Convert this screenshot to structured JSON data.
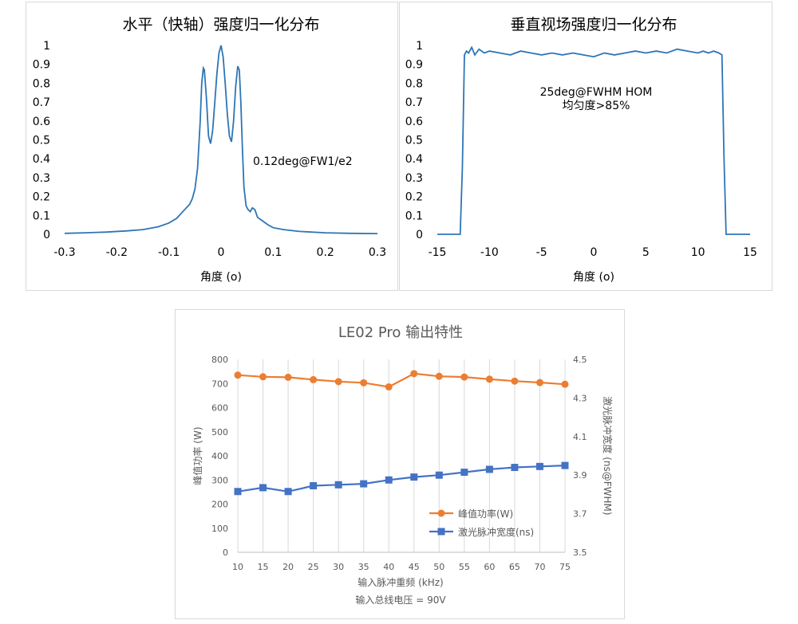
{
  "chart_data": [
    {
      "type": "line",
      "title": "水平（快轴）强度归一化分布",
      "xlabel": "角度 (o)",
      "ylabel": "",
      "xlim": [
        -0.3,
        0.3
      ],
      "ylim": [
        0,
        1
      ],
      "xticks": [
        "-0.3",
        "-0.2",
        "-0.1",
        "0",
        "0.1",
        "0.2",
        "0.3"
      ],
      "yticks": [
        "0",
        "0.1",
        "0.2",
        "0.3",
        "0.4",
        "0.5",
        "0.6",
        "0.7",
        "0.8",
        "0.9",
        "1"
      ],
      "annotation": "0.12deg@FW1/e2",
      "color": "#2e75b6",
      "series": [
        {
          "x": [
            -0.3,
            -0.26,
            -0.22,
            -0.18,
            -0.15,
            -0.12,
            -0.1,
            -0.085,
            -0.07,
            -0.06,
            -0.055,
            -0.05,
            -0.045,
            -0.04,
            -0.037,
            -0.034,
            -0.032,
            -0.028,
            -0.024,
            -0.02,
            -0.016,
            -0.012,
            -0.008,
            -0.004,
            0,
            0.004,
            0.008,
            0.012,
            0.016,
            0.02,
            0.024,
            0.028,
            0.032,
            0.035,
            0.038,
            0.041,
            0.044,
            0.048,
            0.052,
            0.056,
            0.06,
            0.065,
            0.07,
            0.08,
            0.09,
            0.1,
            0.12,
            0.15,
            0.2,
            0.25,
            0.3
          ],
          "y": [
            0.005,
            0.008,
            0.012,
            0.018,
            0.025,
            0.04,
            0.06,
            0.085,
            0.13,
            0.16,
            0.19,
            0.24,
            0.35,
            0.6,
            0.8,
            0.88,
            0.87,
            0.72,
            0.52,
            0.48,
            0.55,
            0.7,
            0.85,
            0.96,
            1.0,
            0.94,
            0.8,
            0.64,
            0.52,
            0.49,
            0.6,
            0.78,
            0.89,
            0.87,
            0.7,
            0.45,
            0.25,
            0.15,
            0.13,
            0.12,
            0.14,
            0.13,
            0.09,
            0.07,
            0.05,
            0.035,
            0.025,
            0.015,
            0.008,
            0.005,
            0.004
          ]
        }
      ]
    },
    {
      "type": "line",
      "title": "垂直视场强度归一化分布",
      "xlabel": "角度 (o)",
      "ylabel": "",
      "xlim": [
        -15,
        15
      ],
      "ylim": [
        0,
        1
      ],
      "xticks": [
        "-15",
        "-10",
        "-5",
        "0",
        "5",
        "10",
        "15"
      ],
      "yticks": [
        "0",
        "0.1",
        "0.2",
        "0.3",
        "0.4",
        "0.5",
        "0.6",
        "0.7",
        "0.8",
        "0.9",
        "1"
      ],
      "annotation": [
        "25deg@FWHM HOM",
        "均匀度>85%"
      ],
      "color": "#2e75b6",
      "series": [
        {
          "x": [
            -15,
            -12.8,
            -12.6,
            -12.4,
            -12.2,
            -12,
            -11.7,
            -11.4,
            -11,
            -10.5,
            -10,
            -9,
            -8,
            -7,
            -6,
            -5,
            -4,
            -3,
            -2,
            -1,
            0,
            1,
            2,
            3,
            4,
            5,
            6,
            7,
            8,
            9,
            10,
            10.5,
            11,
            11.5,
            12,
            12.3,
            12.5,
            12.7,
            15
          ],
          "y": [
            0,
            0,
            0.35,
            0.95,
            0.97,
            0.96,
            0.99,
            0.95,
            0.98,
            0.96,
            0.97,
            0.96,
            0.95,
            0.97,
            0.96,
            0.95,
            0.96,
            0.95,
            0.96,
            0.95,
            0.94,
            0.96,
            0.95,
            0.96,
            0.97,
            0.96,
            0.97,
            0.96,
            0.98,
            0.97,
            0.96,
            0.97,
            0.96,
            0.97,
            0.96,
            0.95,
            0.4,
            0,
            0
          ]
        }
      ]
    },
    {
      "type": "line",
      "title": "LE02 Pro 输出特性",
      "xlabel": [
        "输入脉冲重频 (kHz)",
        "输入总线电压 = 90V"
      ],
      "ylabel": "峰值功率 (W)",
      "y2label": "激光脉冲宽度 (ns@FWHM)",
      "categories": [
        "10",
        "15",
        "20",
        "25",
        "30",
        "35",
        "40",
        "45",
        "50",
        "55",
        "60",
        "65",
        "70",
        "75"
      ],
      "ylim": [
        0,
        800
      ],
      "yticks": [
        "0",
        "100",
        "200",
        "300",
        "400",
        "500",
        "600",
        "700",
        "800"
      ],
      "y2lim": [
        3.5,
        4.5
      ],
      "y2ticks": [
        "3.5",
        "3.7",
        "3.9",
        "4.1",
        "4.3",
        "4.5"
      ],
      "legend_position": "bottom-right-inside",
      "series": [
        {
          "name": "峰值功率(W)",
          "axis": "left",
          "color": "#ed7d31",
          "marker": "circle",
          "values": [
            735,
            728,
            726,
            716,
            708,
            703,
            686,
            741,
            730,
            727,
            718,
            710,
            704,
            697
          ]
        },
        {
          "name": "激光脉冲宽度(ns)",
          "axis": "right",
          "color": "#4472c4",
          "marker": "square",
          "values": [
            3.815,
            3.835,
            3.815,
            3.845,
            3.85,
            3.855,
            3.875,
            3.89,
            3.9,
            3.915,
            3.93,
            3.94,
            3.945,
            3.95
          ]
        }
      ]
    }
  ]
}
